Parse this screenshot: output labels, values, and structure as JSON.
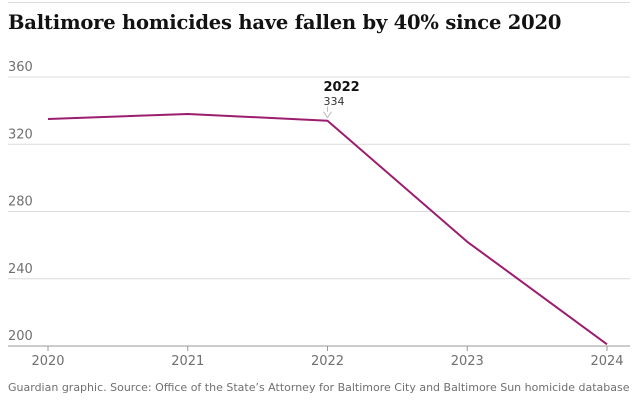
{
  "chart_data": {
    "type": "line",
    "title": "Baltimore homicides have fallen by 40% since 2020",
    "x": [
      "2020",
      "2021",
      "2022",
      "2023",
      "2024"
    ],
    "series": [
      {
        "name": "Homicides",
        "values": [
          335,
          338,
          334,
          262,
          201
        ]
      }
    ],
    "ylim": [
      200,
      360
    ],
    "yticks": [
      "200",
      "240",
      "280",
      "320",
      "360"
    ],
    "xlabel": "",
    "ylabel": "",
    "grid": true,
    "annotations": [
      {
        "x_index": 2,
        "label": "2022",
        "value_text": "334"
      }
    ],
    "line_color": "#9b1d6e"
  },
  "source": "Guardian graphic. Source: Office of the State’s Attorney for Baltimore City and Baltimore Sun homicide database"
}
